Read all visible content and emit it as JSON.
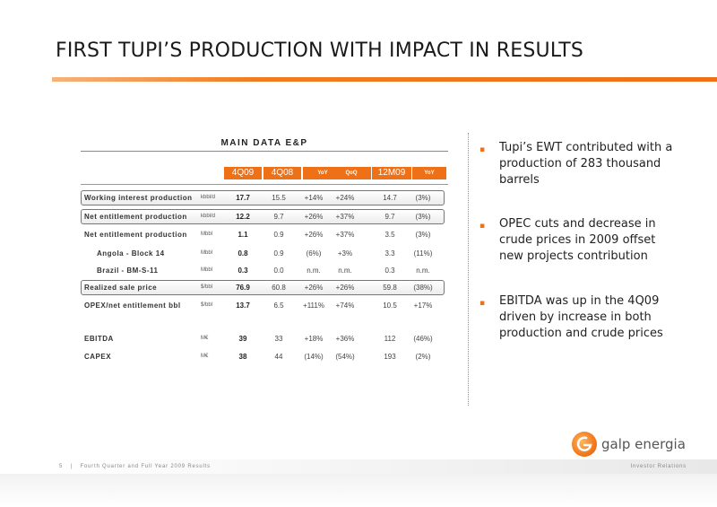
{
  "title": "FIRST TUPI’S PRODUCTION WITH IMPACT IN RESULTS",
  "table": {
    "title": "MAIN DATA E&P",
    "headers": [
      "4Q09",
      "4Q08",
      "YoY",
      "QoQ",
      "12M09",
      "YoY"
    ],
    "rows": [
      {
        "label": "Working interest production",
        "unit": "kbbl/d",
        "values": [
          "17.7",
          "15.5",
          "+14%",
          "+24%",
          "14.7",
          "(3%)"
        ]
      },
      {
        "label": "Net entitlement production",
        "unit": "kbbl/d",
        "values": [
          "12.2",
          "9.7",
          "+26%",
          "+37%",
          "9.7",
          "(3%)"
        ]
      },
      {
        "label": "Net entitlement production",
        "unit": "Mbbl",
        "values": [
          "1.1",
          "0.9",
          "+26%",
          "+37%",
          "3.5",
          "(3%)"
        ]
      },
      {
        "label": "Angola - Block 14",
        "unit": "Mbbl",
        "values": [
          "0.8",
          "0.9",
          "(6%)",
          "+3%",
          "3.3",
          "(11%)"
        ]
      },
      {
        "label": "Brazil - BM-S-11",
        "unit": "Mbbl",
        "values": [
          "0.3",
          "0.0",
          "n.m.",
          "n.m.",
          "0.3",
          "n.m."
        ]
      },
      {
        "label": "Realized sale price",
        "unit": "$/bbl",
        "values": [
          "76.9",
          "60.8",
          "+26%",
          "+26%",
          "59.8",
          "(38%)"
        ]
      },
      {
        "label": "OPEX/net entitlement bbl",
        "unit": "$/bbl",
        "values": [
          "13.7",
          "6.5",
          "+111%",
          "+74%",
          "10.5",
          "+17%"
        ]
      },
      {
        "label": "EBITDA",
        "unit": "M€",
        "values": [
          "39",
          "33",
          "+18%",
          "+36%",
          "112",
          "(46%)"
        ]
      },
      {
        "label": "CAPEX",
        "unit": "M€",
        "values": [
          "38",
          "44",
          "(14%)",
          "(54%)",
          "193",
          "(2%)"
        ]
      }
    ]
  },
  "bullets": [
    "Tupi’s EWT contributed with a production of 283 thousand barrels",
    "OPEC cuts and decrease in crude prices in 2009 offset new projects contribution",
    "EBITDA was up in the 4Q09 driven by increase in both production and crude prices"
  ],
  "bullet_marker": "▪",
  "logo": {
    "text": "galp energia",
    "icon": "galp-logo-icon"
  },
  "footer": {
    "page": "5",
    "left": "Fourth Quarter and Full Year 2009 Results",
    "right": "Investor Relations"
  },
  "colors": {
    "accent": "#ee7017"
  }
}
